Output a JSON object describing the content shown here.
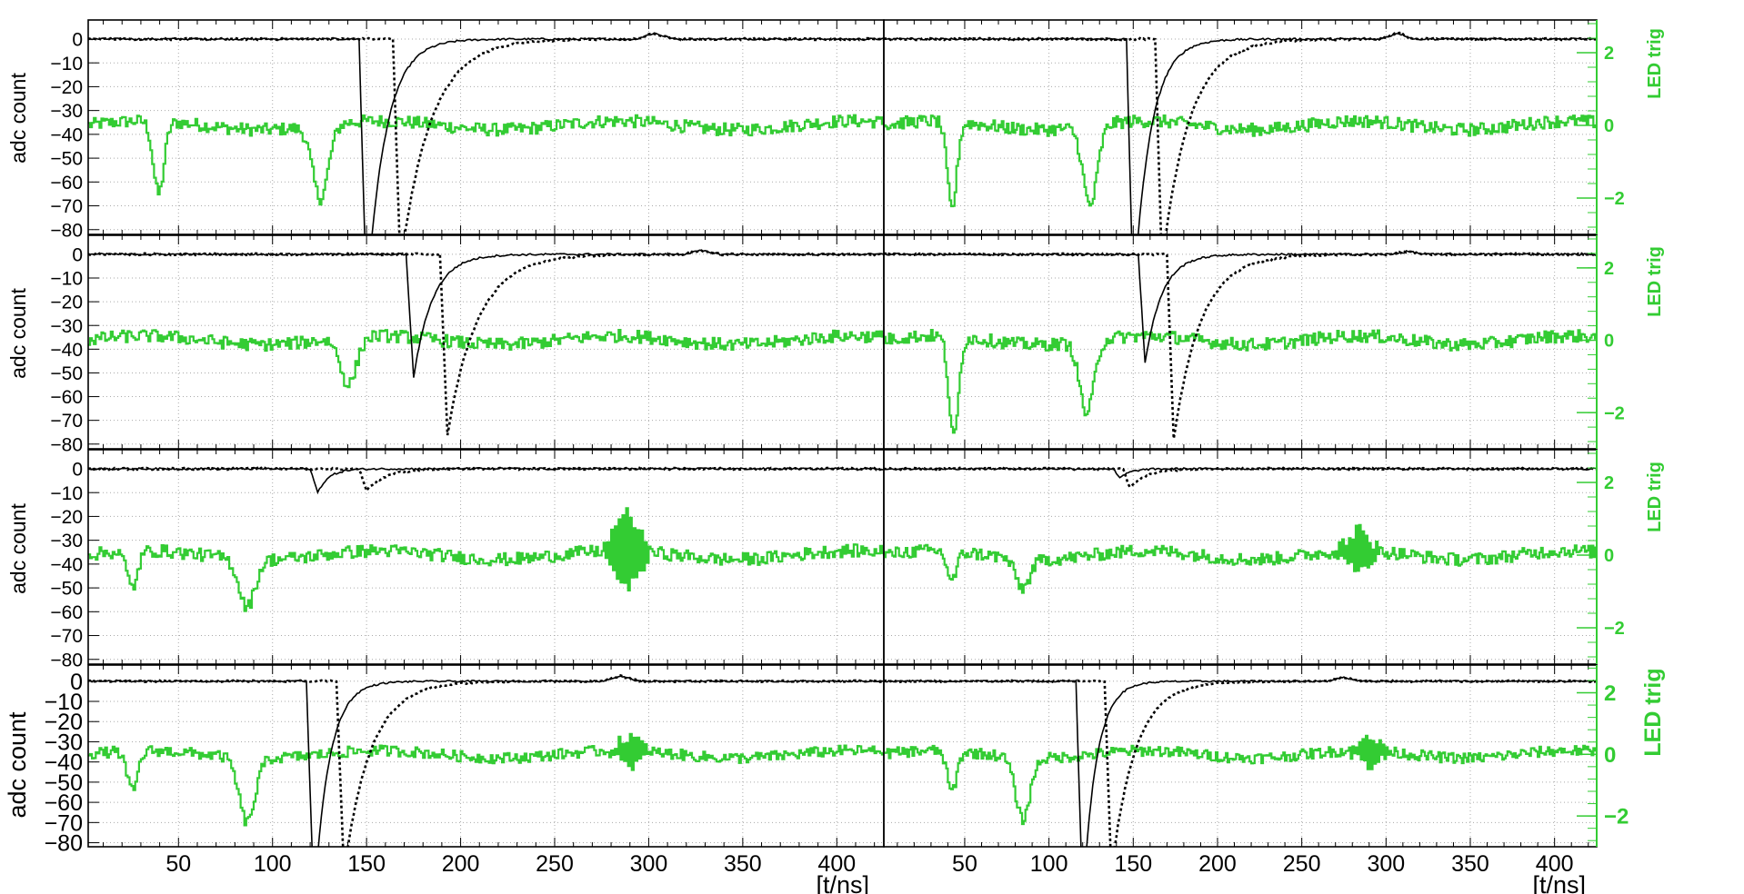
{
  "chart_data": {
    "type": "line",
    "layout": "4 rows x 2 columns of waveform panels",
    "x_axis": {
      "label": "[t/ns]",
      "range": [
        2,
        425
      ],
      "ticks": [
        50,
        100,
        150,
        200,
        250,
        300,
        350,
        400
      ],
      "tick_labels": [
        "50",
        "100",
        "150",
        "200",
        "250",
        "300",
        "350",
        "400"
      ]
    },
    "left_axis": {
      "label": "adc count",
      "range": [
        -82,
        8
      ],
      "ticks": [
        0,
        -10,
        -20,
        -30,
        -40,
        -50,
        -60,
        -70,
        -80
      ],
      "tick_labels": [
        "0",
        "−10",
        "−20",
        "−30",
        "−40",
        "−50",
        "−60",
        "−70",
        "−80"
      ]
    },
    "right_axis": {
      "label": "LED trig",
      "color": "#33cc33",
      "range": [
        -3.0,
        2.9
      ],
      "ticks": [
        2,
        0,
        -2
      ],
      "tick_labels": [
        "2",
        "0",
        "−2"
      ]
    },
    "grid": true,
    "colors": {
      "pulse": "#000000",
      "led": "#33cc33",
      "frame": "#000000",
      "grid": "#aaaaaa"
    },
    "panels": [
      {
        "row": 0,
        "col": 0,
        "solid": {
          "t0": 150,
          "amp": 110,
          "tau": 10
        },
        "dotted": {
          "t0": 168,
          "amp": 95,
          "tau": 16
        },
        "led_dips": [
          {
            "t": 39,
            "a": -2.0
          },
          {
            "t": 125,
            "a": -2.0
          }
        ],
        "led_burst": null,
        "bump": {
          "t": 303,
          "a": 2.5
        }
      },
      {
        "row": 0,
        "col": 1,
        "solid": {
          "t0": 150,
          "amp": 110,
          "tau": 10
        },
        "dotted": {
          "t0": 167,
          "amp": 95,
          "tau": 16
        },
        "led_dips": [
          {
            "t": 42,
            "a": -2.4
          },
          {
            "t": 124,
            "a": -2.2
          }
        ],
        "led_burst": null,
        "bump": {
          "t": 307,
          "a": 2.5
        }
      },
      {
        "row": 1,
        "col": 0,
        "solid": {
          "t0": 175,
          "amp": 52,
          "tau": 10
        },
        "dotted": {
          "t0": 193,
          "amp": 76,
          "tau": 16
        },
        "led_dips": [
          {
            "t": 140,
            "a": -1.3
          }
        ],
        "led_burst": null,
        "bump": {
          "t": 328,
          "a": 1.5
        }
      },
      {
        "row": 1,
        "col": 1,
        "solid": {
          "t0": 157,
          "amp": 46,
          "tau": 10
        },
        "dotted": {
          "t0": 174,
          "amp": 78,
          "tau": 16
        },
        "led_dips": [
          {
            "t": 43,
            "a": -2.8
          },
          {
            "t": 122,
            "a": -2.0
          }
        ],
        "led_burst": null,
        "bump": {
          "t": 313,
          "a": 1.2
        }
      },
      {
        "row": 2,
        "col": 0,
        "solid": {
          "t0": 124,
          "amp": 10,
          "tau": 6
        },
        "dotted": {
          "t0": 150,
          "amp": 9,
          "tau": 10
        },
        "led_dips": [
          {
            "t": 25,
            "a": -1.0
          },
          {
            "t": 86,
            "a": -1.3
          }
        ],
        "led_burst": {
          "t": 288,
          "a": 1.0
        },
        "bump": null
      },
      {
        "row": 2,
        "col": 1,
        "solid": {
          "t0": 142,
          "amp": 4,
          "tau": 6
        },
        "dotted": {
          "t0": 148,
          "amp": 8,
          "tau": 10
        },
        "led_dips": [
          {
            "t": 42,
            "a": -0.8
          },
          {
            "t": 84,
            "a": -0.8
          }
        ],
        "led_burst": {
          "t": 283,
          "a": 0.6
        },
        "bump": null
      },
      {
        "row": 3,
        "col": 0,
        "solid": {
          "t0": 122,
          "amp": 110,
          "tau": 8
        },
        "dotted": {
          "t0": 138,
          "amp": 95,
          "tau": 14
        },
        "led_dips": [
          {
            "t": 25,
            "a": -1.3
          },
          {
            "t": 86,
            "a": -2.1
          }
        ],
        "led_burst": {
          "t": 290,
          "a": 0.5
        },
        "bump": {
          "t": 285,
          "a": 2.5
        }
      },
      {
        "row": 3,
        "col": 1,
        "solid": {
          "t0": 120,
          "amp": 110,
          "tau": 8
        },
        "dotted": {
          "t0": 137,
          "amp": 95,
          "tau": 14
        },
        "led_dips": [
          {
            "t": 42,
            "a": -1.3
          },
          {
            "t": 84,
            "a": -2.0
          }
        ],
        "led_burst": {
          "t": 290,
          "a": 0.5
        },
        "bump": {
          "t": 275,
          "a": 2.0
        }
      }
    ]
  }
}
